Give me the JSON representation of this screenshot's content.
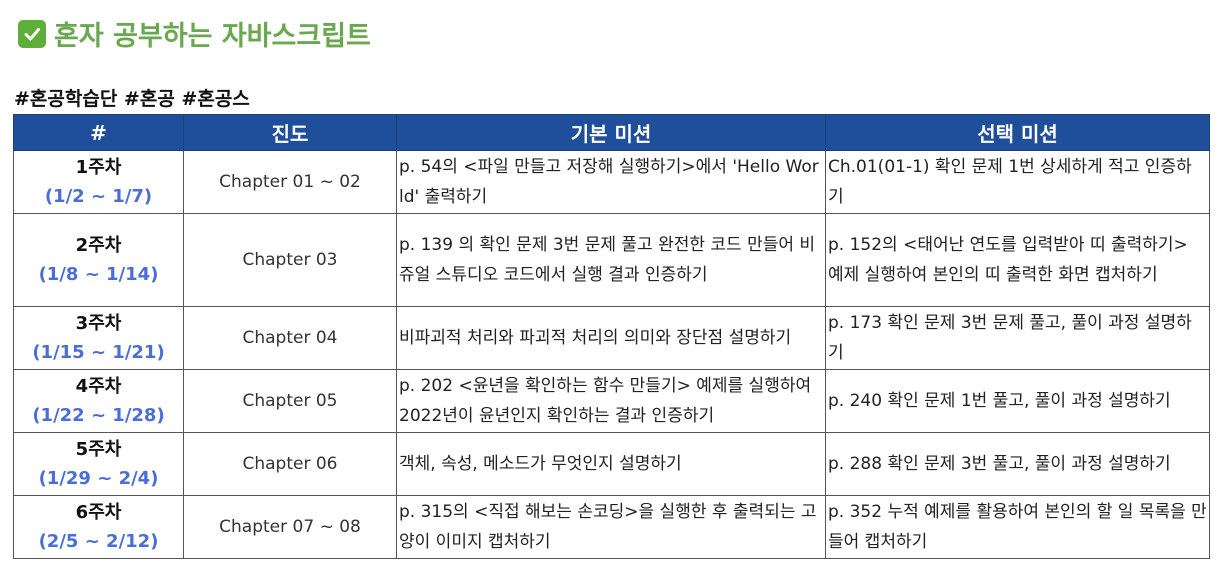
{
  "title": "혼자 공부하는 자바스크립트",
  "title_icon": "check-box-icon",
  "tags": "#혼공학습단 #혼공 #혼공스",
  "colors": {
    "accent": "#6aa84f",
    "header_bg": "#1f4e9a",
    "range": "#4a6ed6"
  },
  "table": {
    "headers": [
      "#",
      "진도",
      "기본 미션",
      "선택 미션"
    ],
    "rows": [
      {
        "week": "1주차",
        "range": "(1/2 ~ 1/7)",
        "progress": "Chapter 01 ~ 02",
        "basic": "p. 54의 <파일 만들고 저장해 실행하기>에서 'Hello World' 출력하기",
        "optional": "Ch.01(01-1) 확인 문제 1번 상세하게 적고 인증하기"
      },
      {
        "week": "2주차",
        "range": "(1/8 ~ 1/14)",
        "progress": "Chapter 03",
        "basic": "p. 139 의 확인 문제 3번 문제 풀고 완전한 코드 만들어 비쥬얼 스튜디오 코드에서 실행 결과 인증하기",
        "optional": "p. 152의 <태어난 연도를 입력받아 띠 출력하기> 예제 실행하여 본인의 띠 출력한 화면 캡처하기"
      },
      {
        "week": "3주차",
        "range": "(1/15 ~ 1/21)",
        "progress": "Chapter 04",
        "basic": "비파괴적 처리와 파괴적 처리의 의미와 장단점 설명하기",
        "optional": "p. 173 확인 문제 3번 문제 풀고, 풀이 과정 설명하기"
      },
      {
        "week": "4주차",
        "range": "(1/22 ~ 1/28)",
        "progress": "Chapter 05",
        "basic": "p. 202 <윤년을 확인하는 함수 만들기> 예제를 실행하여 2022년이 윤년인지 확인하는 결과 인증하기",
        "optional": "p. 240 확인 문제 1번 풀고, 풀이 과정 설명하기"
      },
      {
        "week": "5주차",
        "range": "(1/29 ~ 2/4)",
        "progress": "Chapter 06",
        "basic": "객체, 속성, 메소드가 무엇인지 설명하기",
        "optional": "p. 288 확인 문제 3번 풀고, 풀이 과정 설명하기"
      },
      {
        "week": "6주차",
        "range": "(2/5 ~ 2/12)",
        "progress": "Chapter 07 ~ 08",
        "basic": "p. 315의 <직접 해보는 손코딩>을 실행한 후 출력되는 고양이 이미지 캡처하기",
        "optional": "p. 352 누적 예제를 활용하여 본인의 할 일 목록을 만들어 캡처하기"
      }
    ]
  }
}
